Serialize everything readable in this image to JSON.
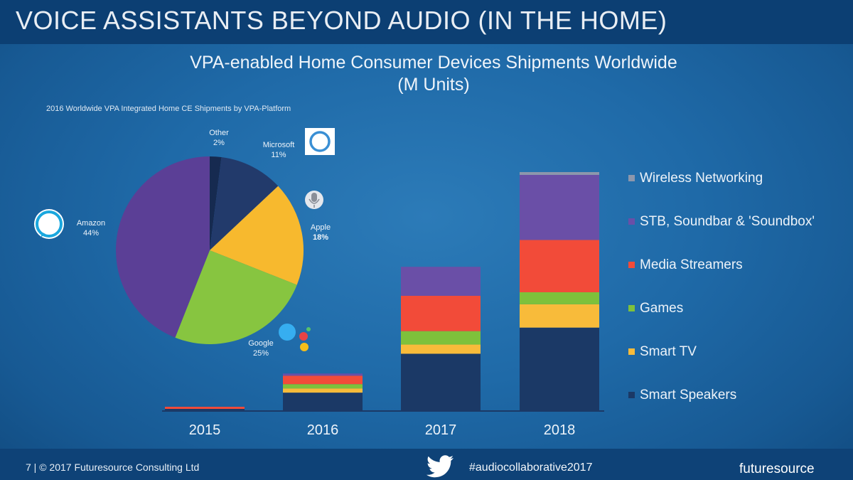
{
  "slide": {
    "title": "VOICE ASSISTANTS BEYOND AUDIO (IN THE HOME)",
    "footer": "7 | © 2017 Futuresource Consulting Ltd",
    "hashtag": "#audiocollaborative2017",
    "logo": "futuresource"
  },
  "colors": {
    "wireless": "#8d97ac",
    "stb": "#6a4fa7",
    "media": "#f24b39",
    "games": "#7ec13b",
    "smarttv": "#f8bb3a",
    "speakers": "#1b3966",
    "pie_amazon": "#5b3f96",
    "pie_google": "#87c540",
    "pie_apple": "#f7b92e",
    "pie_microsoft": "#223a6b",
    "pie_other": "#162a50"
  },
  "chart_data": [
    {
      "type": "pie",
      "title": "2016 Worldwide VPA Integrated Home CE Shipments by VPA-Platform",
      "slices": [
        {
          "name": "Other",
          "value": 2,
          "label": "2%",
          "color": "#162a50"
        },
        {
          "name": "Microsoft",
          "value": 11,
          "label": "11%",
          "color": "#223a6b"
        },
        {
          "name": "Apple",
          "value": 18,
          "label": "18%",
          "color": "#f7b92e"
        },
        {
          "name": "Google",
          "value": 25,
          "label": "25%",
          "color": "#87c540"
        },
        {
          "name": "Amazon",
          "value": 44,
          "label": "44%",
          "color": "#5b3f96"
        }
      ]
    },
    {
      "type": "bar",
      "stacked": true,
      "title": "VPA-enabled Home Consumer Devices Shipments Worldwide (M Units)",
      "categories": [
        "2015",
        "2016",
        "2017",
        "2018"
      ],
      "ylim": [
        0,
        340
      ],
      "legend_position": "right",
      "series": [
        {
          "name": "Smart Speakers",
          "color": "#1b3966",
          "values": [
            2,
            25,
            80,
            117
          ]
        },
        {
          "name": "Smart TV",
          "color": "#f8bb3a",
          "values": [
            0,
            6,
            13,
            33
          ]
        },
        {
          "name": "Games",
          "color": "#7ec13b",
          "values": [
            0,
            6,
            19,
            17
          ]
        },
        {
          "name": "Media Streamers",
          "color": "#f24b39",
          "values": [
            3,
            12,
            50,
            74
          ]
        },
        {
          "name": "STB, Soundbar & 'Soundbox'",
          "color": "#6a4fa7",
          "values": [
            0,
            3,
            41,
            92
          ]
        },
        {
          "name": "Wireless Networking",
          "color": "#8d97ac",
          "values": [
            0,
            0,
            0,
            4
          ]
        }
      ]
    }
  ]
}
